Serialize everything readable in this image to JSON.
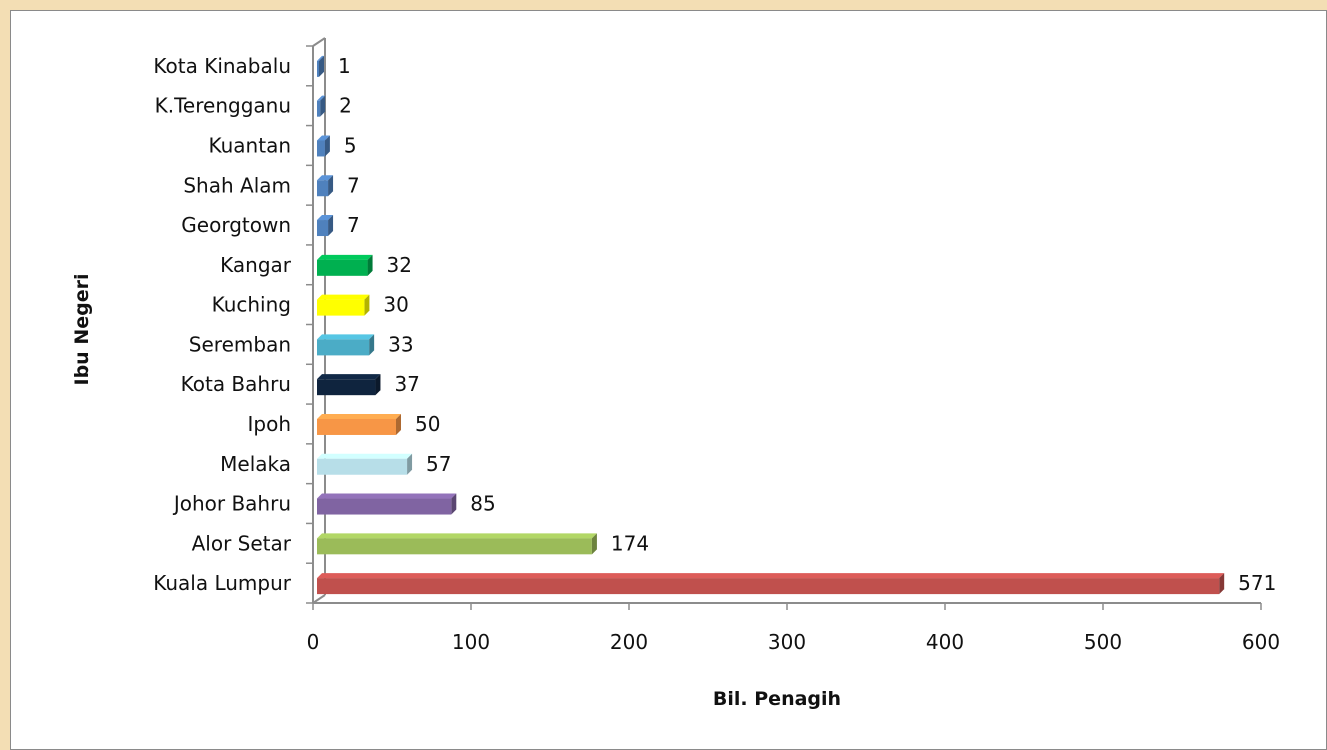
{
  "chart_data": {
    "type": "bar",
    "orientation": "horizontal",
    "categories": [
      "Kuala Lumpur",
      "Alor Setar",
      "Johor Bahru",
      "Melaka",
      "Ipoh",
      "Kota Bahru",
      "Seremban",
      "Kuching",
      "Kangar",
      "Georgtown",
      "Shah Alam",
      "Kuantan",
      "K.Terengganu",
      "Kota Kinabalu"
    ],
    "values": [
      571,
      174,
      85,
      57,
      50,
      37,
      33,
      30,
      32,
      7,
      7,
      5,
      2,
      1
    ],
    "colors": [
      "#c0504d",
      "#9bbb59",
      "#8064a2",
      "#b7dee8",
      "#f79646",
      "#0f243e",
      "#4bacc6",
      "#ffff00",
      "#00b050",
      "#4f81bd",
      "#4f81bd",
      "#4f81bd",
      "#4f81bd",
      "#4f81bd"
    ],
    "title": "",
    "xlabel": "Bil. Penagih",
    "ylabel": "Ibu Negeri",
    "xlim": [
      0,
      600
    ],
    "xticks": [
      0,
      100,
      200,
      300,
      400,
      500,
      600
    ],
    "grid": false,
    "legend": "none"
  }
}
